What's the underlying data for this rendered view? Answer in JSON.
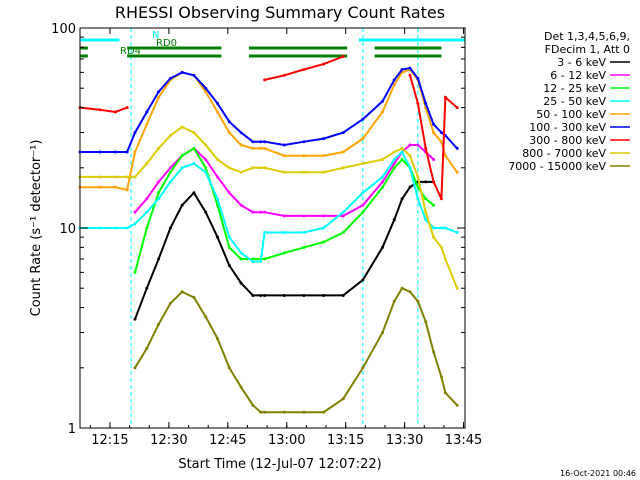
{
  "chart_data": {
    "type": "line",
    "title": "RHESSI Observing Summary Count Rates",
    "xlabel": "Start Time (12-Jul-07 12:07:22)",
    "ylabel": "Count Rate (s⁻¹ detector⁻¹)",
    "yscale": "log",
    "ylim": [
      1,
      100
    ],
    "xlim_minutes_after_start": [
      0,
      98
    ],
    "x_ticks": [
      {
        "label": "12:15",
        "minute": 7.63
      },
      {
        "label": "12:30",
        "minute": 22.63
      },
      {
        "label": "12:45",
        "minute": 37.63
      },
      {
        "label": "13:00",
        "minute": 52.63
      },
      {
        "label": "13:15",
        "minute": 67.63
      },
      {
        "label": "13:30",
        "minute": 82.63
      },
      {
        "label": "13:45",
        "minute": 97.63
      }
    ],
    "y_ticks": [
      {
        "label": "1",
        "value": 1
      },
      {
        "label": "10",
        "value": 10
      },
      {
        "label": "100",
        "value": 100
      }
    ],
    "legend_header": [
      "Det 1,3,4,5,6,9,",
      "FDecim 1, Att 0"
    ],
    "legend_placement": "right",
    "x": [
      0,
      5,
      9,
      12,
      14,
      17,
      20,
      23,
      26,
      29,
      32,
      35,
      38,
      41,
      44,
      46,
      47,
      52,
      57,
      62,
      67,
      72,
      77,
      80,
      82,
      84,
      86,
      88,
      90,
      92,
      93,
      96
    ],
    "series": [
      {
        "name": "3 - 6 keV",
        "color": "#000000",
        "values": [
          null,
          null,
          null,
          null,
          3.5,
          5,
          7,
          10,
          13,
          15,
          12,
          9,
          6.5,
          5.3,
          4.6,
          4.6,
          4.6,
          4.6,
          4.6,
          4.6,
          4.6,
          5.5,
          8,
          11,
          14,
          16,
          17,
          17,
          17,
          null,
          null,
          null
        ]
      },
      {
        "name": "6 - 12 keV",
        "color": "#ff00ff",
        "values": [
          null,
          null,
          null,
          null,
          12,
          14,
          17,
          20,
          23,
          25,
          22,
          18,
          15,
          13,
          12,
          12,
          12,
          11.5,
          11.5,
          11.5,
          11.5,
          13,
          17,
          21,
          24,
          26,
          26,
          24,
          22,
          null,
          null,
          null
        ]
      },
      {
        "name": "12 - 25 keV",
        "color": "#00ff00",
        "values": [
          null,
          null,
          null,
          null,
          6,
          10,
          15,
          19,
          23,
          25,
          20,
          13,
          8,
          7,
          7,
          7,
          7,
          7.5,
          8,
          8.5,
          9.5,
          12,
          16,
          20,
          22,
          20,
          16,
          14,
          13,
          null,
          null,
          null
        ]
      },
      {
        "name": "25 - 50 keV",
        "color": "#00ffff",
        "values": [
          10,
          10,
          10,
          10,
          10.5,
          12,
          14,
          17,
          20,
          21,
          19,
          14,
          9,
          7.5,
          6.8,
          6.8,
          9.5,
          9.5,
          9.5,
          10,
          12,
          15,
          18,
          22,
          24,
          20,
          14,
          11,
          10,
          10,
          10,
          9.5
        ]
      },
      {
        "name": "50 - 100 keV",
        "color": "#ffa500",
        "values": [
          16,
          16,
          16,
          15.5,
          24,
          33,
          45,
          55,
          60,
          58,
          48,
          38,
          30,
          26,
          25,
          25,
          25,
          23,
          23,
          23,
          24,
          28,
          38,
          52,
          60,
          62,
          55,
          40,
          30,
          27,
          23,
          19
        ]
      },
      {
        "name": "100 - 300 keV",
        "color": "#0000ff",
        "values": [
          24,
          24,
          24,
          24,
          30,
          38,
          48,
          56,
          60,
          58,
          50,
          42,
          34,
          30,
          27,
          27,
          27,
          26,
          27,
          28,
          30,
          35,
          43,
          55,
          62,
          63,
          56,
          42,
          33,
          30,
          29,
          25
        ]
      },
      {
        "name": "300 - 800 keV",
        "color": "#ff0000",
        "values": [
          40,
          39,
          38,
          40,
          null,
          null,
          null,
          null,
          null,
          null,
          null,
          null,
          null,
          null,
          null,
          null,
          55,
          58,
          62,
          66,
          72,
          null,
          null,
          null,
          null,
          58,
          42,
          25,
          17,
          14,
          45,
          40
        ]
      },
      {
        "name": "800 - 7000 keV",
        "color": "#ddcc00",
        "values": [
          18,
          18,
          18,
          18,
          18,
          21,
          25,
          29,
          32,
          30,
          26,
          22,
          20,
          19,
          20,
          20,
          20,
          19,
          19,
          19,
          20,
          21,
          22,
          24,
          25,
          23,
          18,
          12,
          9,
          8,
          7,
          5
        ]
      },
      {
        "name": "7000 - 15000 keV",
        "color": "#808000",
        "values": [
          null,
          null,
          null,
          null,
          2,
          2.5,
          3.3,
          4.2,
          4.8,
          4.5,
          3.6,
          2.8,
          2.0,
          1.6,
          1.3,
          1.2,
          1.2,
          1.2,
          1.2,
          1.2,
          1.4,
          2,
          3,
          4.3,
          5.0,
          4.8,
          4.3,
          3.4,
          2.4,
          1.8,
          1.5,
          1.3
        ]
      }
    ],
    "observing_flags": [
      {
        "label": "N",
        "color": "#00ffff",
        "spans_minutes": [
          [
            0,
            10
          ],
          [
            71,
            98
          ]
        ]
      },
      {
        "label": "RD0",
        "color": "#008000",
        "spans_minutes": [
          [
            0,
            2
          ],
          [
            12,
            36
          ],
          [
            43,
            68
          ],
          [
            75,
            92
          ]
        ]
      },
      {
        "label": "RD4",
        "color": "#008000",
        "spans_minutes": [
          [
            0,
            2
          ],
          [
            12,
            36
          ],
          [
            43,
            68
          ],
          [
            75,
            92
          ]
        ]
      }
    ],
    "saa_markers_minutes": [
      13,
      72,
      86
    ],
    "timestamp": "16-Oct-2021 00:46"
  }
}
